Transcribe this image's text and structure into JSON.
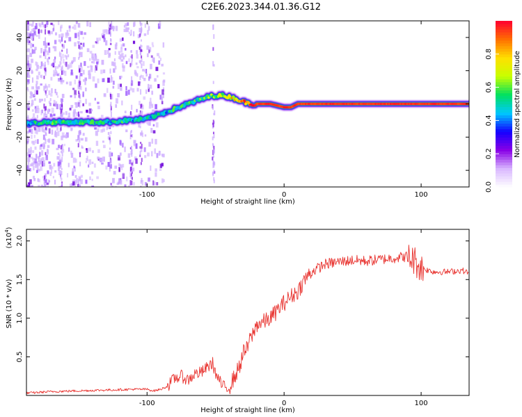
{
  "title": "C2E6.2023.344.01.36.G12",
  "colors": {
    "snr_line": "#e8322e",
    "spectrum_ridge_center": "#e02020"
  },
  "chart_data": [
    {
      "type": "heatmap",
      "xlabel": "Height of straight line (km)",
      "ylabel": "Frequency (Hz)",
      "xlim": [
        -188,
        135
      ],
      "ylim": [
        -50,
        50
      ],
      "xticks": [
        -100,
        0,
        100
      ],
      "xtick_labels": [
        "-100",
        "0",
        "100"
      ],
      "yticks": [
        -40,
        -20,
        0,
        20,
        40
      ],
      "ytick_labels": [
        "-40",
        "-20",
        "0",
        "20",
        "40"
      ],
      "colorbar": {
        "label": "Normalized spectral amplitude",
        "range": [
          0,
          1
        ],
        "ticks": [
          0.0,
          0.2,
          0.4,
          0.6,
          0.8
        ],
        "tick_labels": [
          "0.0",
          "0.2",
          "0.4",
          "0.6",
          "0.8"
        ],
        "colormap": [
          "#ffffff",
          "#d9b8ff",
          "#8a00e6",
          "#1400ff",
          "#00c8ff",
          "#00e060",
          "#c8ff00",
          "#ffe000",
          "#ff7000",
          "#ff0030"
        ]
      },
      "ridge": {
        "x": [
          -188,
          -175,
          -160,
          -145,
          -130,
          -115,
          -100,
          -90,
          -80,
          -70,
          -60,
          -52,
          -45,
          -38,
          -32,
          -25,
          -18,
          -10,
          0,
          5,
          10,
          20,
          40,
          60,
          80,
          100,
          120,
          135
        ],
        "freq": [
          -12,
          -11,
          -11,
          -11,
          -11,
          -10,
          -9,
          -6,
          -3,
          0,
          3,
          5,
          5,
          4,
          2,
          0,
          0,
          0,
          -2,
          -2,
          0,
          0,
          0,
          0,
          0,
          0,
          0,
          0
        ],
        "amplitude": [
          0.45,
          0.5,
          0.55,
          0.5,
          0.5,
          0.5,
          0.45,
          0.45,
          0.5,
          0.5,
          0.55,
          0.6,
          0.65,
          0.75,
          0.8,
          0.9,
          0.95,
          0.95,
          0.95,
          0.95,
          0.95,
          0.95,
          0.95,
          0.95,
          0.95,
          0.95,
          0.95,
          0.95
        ]
      }
    },
    {
      "type": "line",
      "xlabel": "Height of straight line (km)",
      "ylabel": "SNR (10 * v/v)",
      "y_multiplier": "(x10",
      "y_multiplier_exp": "4",
      "xlim": [
        -188,
        135
      ],
      "ylim": [
        0.0,
        2.15
      ],
      "xticks": [
        -100,
        0,
        100
      ],
      "xtick_labels": [
        "-100",
        "0",
        "100"
      ],
      "yticks": [
        0.5,
        1.0,
        1.5,
        2.0
      ],
      "ytick_labels": [
        "0.5",
        "1.0",
        "1.5",
        "2.0"
      ],
      "series": [
        {
          "x": [
            -188,
            -170,
            -150,
            -130,
            -110,
            -100,
            -95,
            -90,
            -85,
            -80,
            -75,
            -70,
            -65,
            -60,
            -55,
            -52,
            -50,
            -45,
            -42,
            -40,
            -38,
            -35,
            -32,
            -30,
            -27,
            -25,
            -22,
            -20,
            -15,
            -10,
            -5,
            0,
            5,
            10,
            15,
            20,
            25,
            30,
            40,
            50,
            60,
            70,
            80,
            90,
            95,
            100,
            105,
            110,
            120,
            130,
            135
          ],
          "y": [
            0.03,
            0.05,
            0.06,
            0.07,
            0.08,
            0.08,
            0.06,
            0.08,
            0.12,
            0.22,
            0.25,
            0.2,
            0.28,
            0.3,
            0.38,
            0.42,
            0.28,
            0.12,
            0.1,
            0.11,
            0.18,
            0.28,
            0.4,
            0.55,
            0.6,
            0.72,
            0.82,
            0.92,
            0.95,
            1.0,
            1.1,
            1.2,
            1.28,
            1.35,
            1.5,
            1.6,
            1.65,
            1.7,
            1.73,
            1.75,
            1.74,
            1.76,
            1.78,
            1.8,
            1.75,
            1.65,
            1.62,
            1.6,
            1.6,
            1.62,
            1.58
          ]
        }
      ]
    }
  ]
}
